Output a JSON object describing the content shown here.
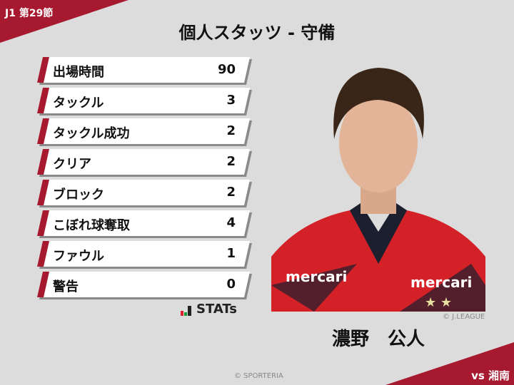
{
  "header": {
    "round": "J1 第29節",
    "title": "個人スタッツ - 守備"
  },
  "stats": [
    {
      "label": "出場時間",
      "value": "90"
    },
    {
      "label": "タックル",
      "value": "3"
    },
    {
      "label": "タックル成功",
      "value": "2"
    },
    {
      "label": "クリア",
      "value": "2"
    },
    {
      "label": "ブロック",
      "value": "2"
    },
    {
      "label": "こぼれ球奪取",
      "value": "4"
    },
    {
      "label": "ファウル",
      "value": "1"
    },
    {
      "label": "警告",
      "value": "0"
    }
  ],
  "brand": {
    "logo_text": "STATs"
  },
  "player": {
    "name": "濃野　公人",
    "jersey_sponsor": "mercari",
    "photo_credit": "© J.LEAGUE"
  },
  "footer": {
    "credit": "© SPORTERIA",
    "opponent": "vs 湘南"
  },
  "colors": {
    "accent": "#a6192e",
    "background": "#dcdcdc"
  }
}
